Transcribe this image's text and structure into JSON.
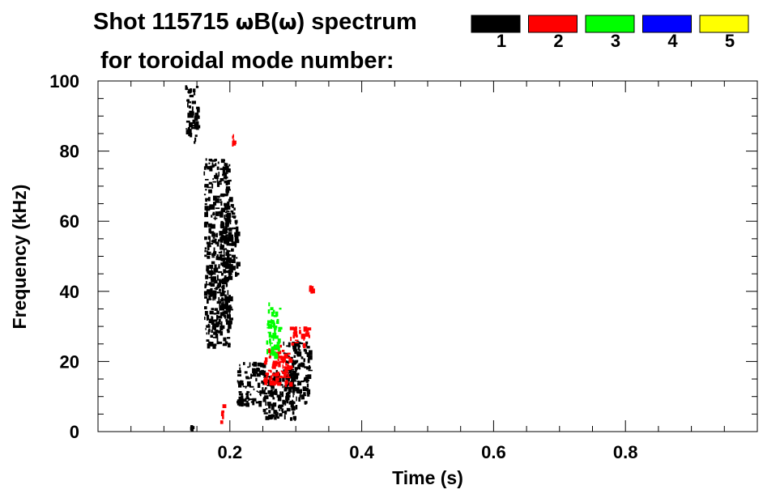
{
  "chart_data": {
    "type": "spectrogram",
    "title_line1_prefix": "Shot 115715 ",
    "title_omega": "ω",
    "title_line1_mid": "B(",
    "title_line1_suffix": ") spectrum",
    "title_line2": "for toroidal mode number:",
    "xlabel": "Time (s)",
    "ylabel": "Frequency (kHz)",
    "xlim": [
      0.0,
      1.0
    ],
    "ylim": [
      0,
      100
    ],
    "x_ticks": [
      {
        "value": 0.2,
        "label": "0.2"
      },
      {
        "value": 0.4,
        "label": "0.4"
      },
      {
        "value": 0.6,
        "label": "0.6"
      },
      {
        "value": 0.8,
        "label": "0.8"
      }
    ],
    "y_ticks": [
      {
        "value": 0,
        "label": "0"
      },
      {
        "value": 20,
        "label": "20"
      },
      {
        "value": 40,
        "label": "40"
      },
      {
        "value": 60,
        "label": "60"
      },
      {
        "value": 80,
        "label": "80"
      },
      {
        "value": 100,
        "label": "100"
      }
    ],
    "legend": [
      {
        "mode": "1",
        "color": "#000000"
      },
      {
        "mode": "2",
        "color": "#ff0000"
      },
      {
        "mode": "3",
        "color": "#00ff00"
      },
      {
        "mode": "4",
        "color": "#0000ff"
      },
      {
        "mode": "5",
        "color": "#ffff00"
      }
    ],
    "series": [
      {
        "mode": "1",
        "color": "#000000",
        "regions": [
          {
            "t": [
              0.132,
              0.15
            ],
            "f": [
              85,
              100
            ]
          },
          {
            "t": [
              0.145,
              0.148
            ],
            "f": [
              80,
              88
            ]
          },
          {
            "t": [
              0.16,
              0.2
            ],
            "f": [
              25,
              78
            ]
          },
          {
            "t": [
              0.185,
              0.2
            ],
            "f": [
              35,
              62
            ]
          },
          {
            "t": [
              0.2,
              0.21
            ],
            "f": [
              45,
              65
            ]
          },
          {
            "t": [
              0.21,
              0.25
            ],
            "f": [
              8,
              20
            ]
          },
          {
            "t": [
              0.25,
              0.3
            ],
            "f": [
              4,
              18
            ]
          },
          {
            "t": [
              0.28,
              0.32
            ],
            "f": [
              8,
              26
            ]
          },
          {
            "t": [
              0.138,
              0.142
            ],
            "f": [
              1,
              2
            ]
          }
        ]
      },
      {
        "mode": "2",
        "color": "#ff0000",
        "regions": [
          {
            "t": [
              0.184,
              0.19
            ],
            "f": [
              3,
              8
            ]
          },
          {
            "t": [
              0.25,
              0.29
            ],
            "f": [
              14,
              25
            ]
          },
          {
            "t": [
              0.29,
              0.32
            ],
            "f": [
              25,
              30
            ]
          },
          {
            "t": [
              0.32,
              0.322
            ],
            "f": [
              40,
              42
            ]
          },
          {
            "t": [
              0.203,
              0.205
            ],
            "f": [
              82,
              85
            ]
          }
        ]
      },
      {
        "mode": "3",
        "color": "#00ff00",
        "regions": [
          {
            "t": [
              0.255,
              0.275
            ],
            "f": [
              22,
              37
            ]
          }
        ]
      }
    ]
  }
}
